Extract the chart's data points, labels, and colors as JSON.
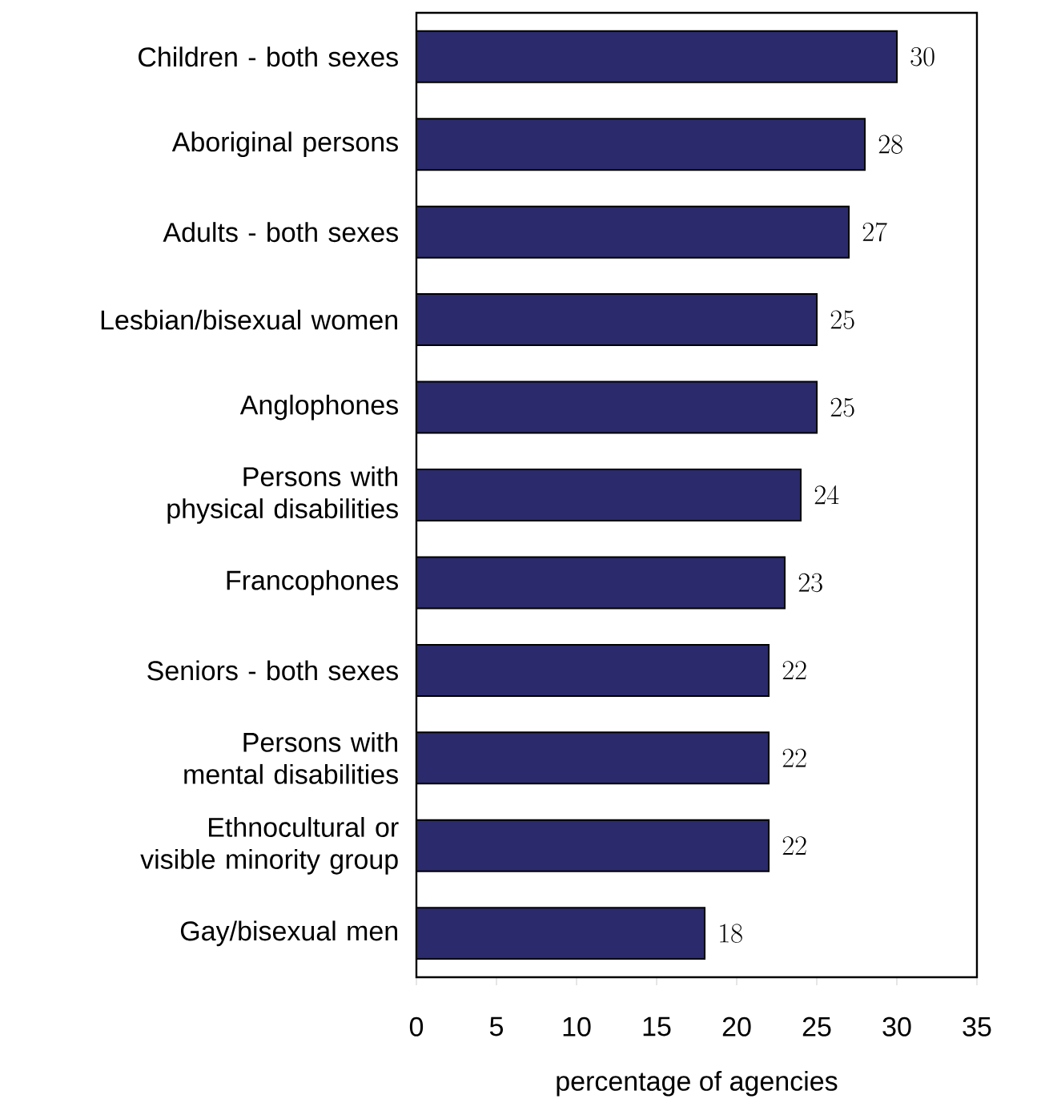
{
  "chart_data": {
    "type": "bar",
    "orientation": "horizontal",
    "xlabel": "percentage of agencies",
    "categories": [
      "Children - both sexes",
      "Aboriginal persons",
      "Adults - both sexes",
      "Lesbian/bisexual women",
      "Anglophones",
      "Persons with physical disabilities",
      "Francophones",
      "Seniors - both sexes",
      "Persons with mental disabilities",
      "Ethnocultural or visible minority group",
      "Gay/bisexual men"
    ],
    "values": [
      30,
      28,
      27,
      25,
      25,
      24,
      23,
      22,
      22,
      22,
      18
    ],
    "color": "#2b2a6c",
    "xlim": [
      0,
      35
    ],
    "xticks": [
      0,
      5,
      10,
      15,
      20,
      25,
      30,
      35
    ],
    "data_labels": true,
    "grid": false
  }
}
